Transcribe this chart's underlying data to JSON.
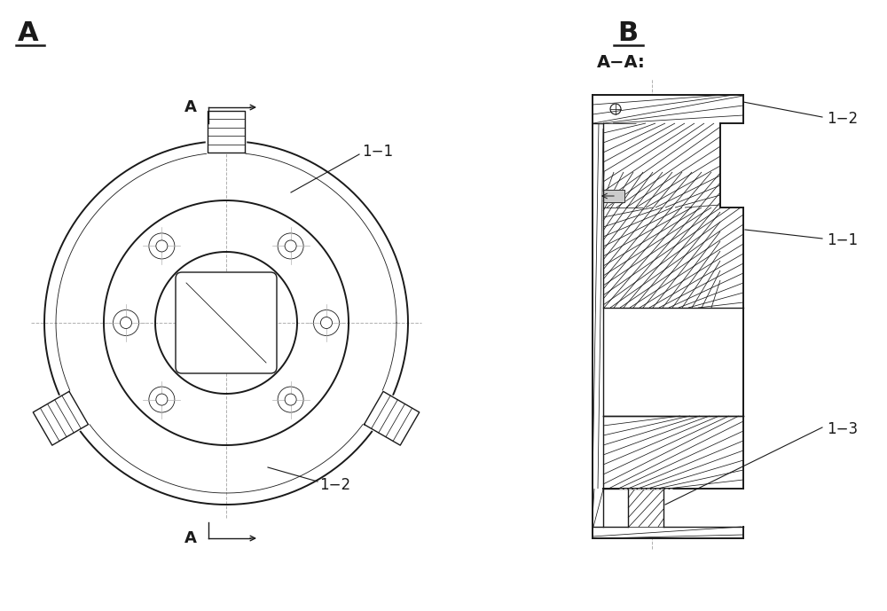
{
  "bg_color": "#ffffff",
  "line_color": "#1a1a1a",
  "centerline_color": "#b0b0b0",
  "label_color": "#1a1a1a",
  "title_A": "A",
  "title_B": "B",
  "section_label": "A−A:",
  "label_11": "1−1",
  "label_12": "1−2",
  "label_13": "1−3",
  "font_size_title": 20,
  "font_size_label": 12,
  "font_size_section": 13
}
